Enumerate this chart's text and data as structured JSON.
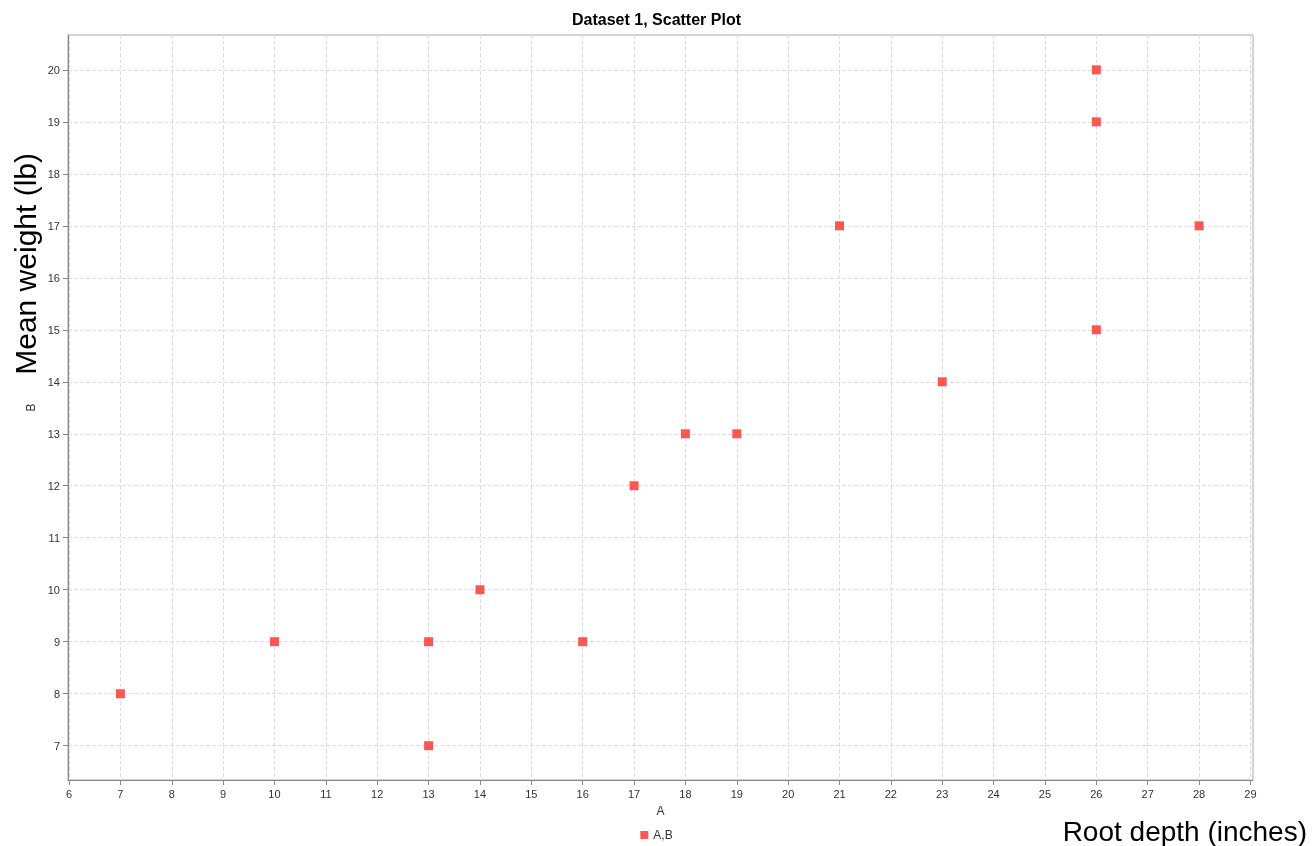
{
  "chart_data": {
    "type": "scatter",
    "title": "Dataset 1, Scatter Plot",
    "xlabel": "A",
    "ylabel": "B",
    "annotations": [
      "Mean weight (lb)",
      "Root depth (inches)"
    ],
    "series": [
      {
        "name": "A,B",
        "color": "#ff5555",
        "x": [
          7,
          10,
          13,
          13,
          14,
          16,
          17,
          18,
          19,
          21,
          23,
          26,
          26,
          26,
          28
        ],
        "values": [
          8,
          9,
          9,
          7,
          10,
          9,
          12,
          13,
          13,
          17,
          14,
          20,
          19,
          15,
          17
        ]
      }
    ],
    "xlim": [
      5.98,
      29.05
    ],
    "xticks": [
      6,
      7,
      8,
      9,
      10,
      11,
      12,
      13,
      14,
      15,
      16,
      17,
      18,
      19,
      20,
      21,
      22,
      23,
      24,
      25,
      26,
      27,
      28,
      29
    ],
    "ylim": [
      6.34,
      20.67
    ],
    "yticks": [
      7,
      8,
      9,
      10,
      11,
      12,
      13,
      14,
      15,
      16,
      17,
      18,
      19,
      20
    ],
    "grid": true,
    "legend": "bottom",
    "marker": "square"
  }
}
